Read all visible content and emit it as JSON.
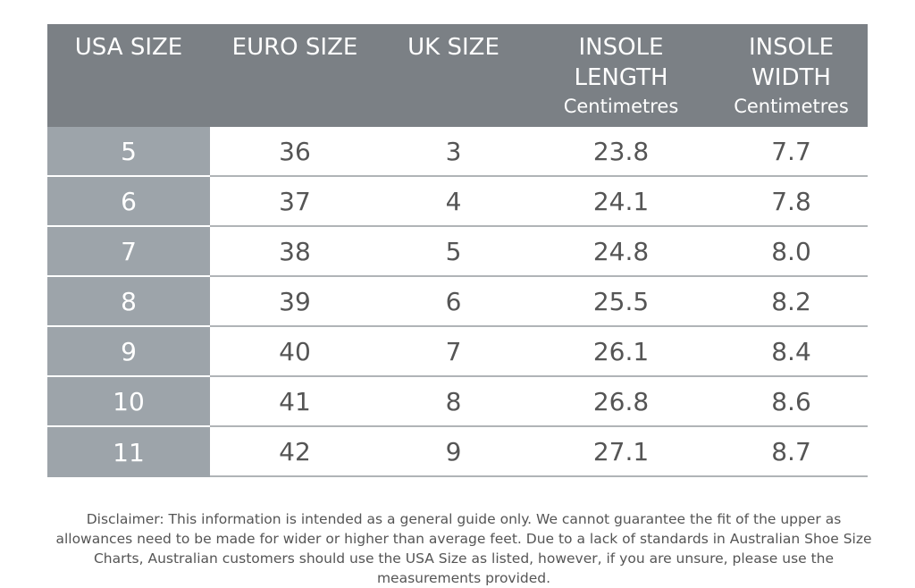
{
  "table": {
    "columns": [
      {
        "title": "USA SIZE"
      },
      {
        "title": "EURO SIZE"
      },
      {
        "title": "UK SIZE"
      },
      {
        "title": "INSOLE LENGTH",
        "unit": "Centimetres"
      },
      {
        "title": "INSOLE WIDTH",
        "unit": "Centimetres"
      }
    ],
    "rows": [
      [
        "5",
        "36",
        "3",
        "23.8",
        "7.7"
      ],
      [
        "6",
        "37",
        "4",
        "24.1",
        "7.8"
      ],
      [
        "7",
        "38",
        "5",
        "24.8",
        "8.0"
      ],
      [
        "8",
        "39",
        "6",
        "25.5",
        "8.2"
      ],
      [
        "9",
        "40",
        "7",
        "26.1",
        "8.4"
      ],
      [
        "10",
        "41",
        "8",
        "26.8",
        "8.6"
      ],
      [
        "11",
        "42",
        "9",
        "27.1",
        "8.7"
      ]
    ]
  },
  "disclaimer": "Disclaimer: This information is intended as a general guide only. We cannot guarantee the fit of the upper as allowances need to be made for wider or higher than average feet. Due to a lack of standards in Australian Shoe Size Charts, Australian customers should use the USA Size as listed, however, if you are unsure, please use the measurements provided."
}
